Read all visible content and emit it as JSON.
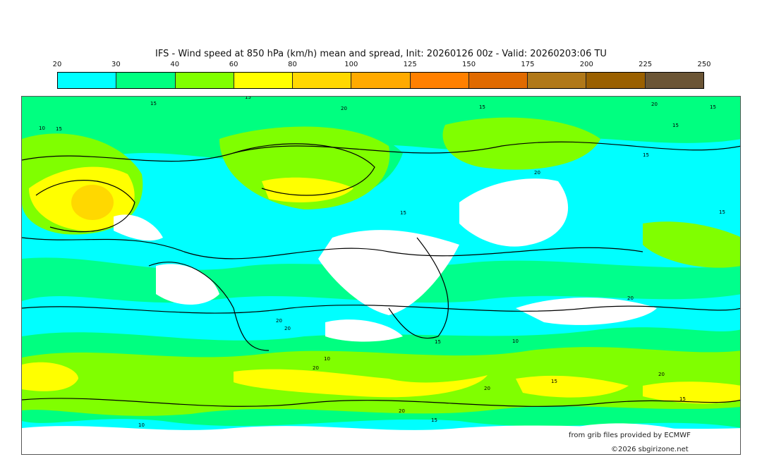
{
  "title": "IFS - Wind speed at 850 hPa (km/h) mean and spread, Init: 20260126 00z - Valid: 20260203:06 TU",
  "colorbar": {
    "ticks": [
      "20",
      "30",
      "40",
      "60",
      "80",
      "100",
      "125",
      "150",
      "175",
      "200",
      "225",
      "250"
    ],
    "colors": [
      "#00ffff",
      "#00ff80",
      "#80ff00",
      "#ffff00",
      "#ffd800",
      "#ffaa00",
      "#ff8000",
      "#e06a00",
      "#b07818",
      "#9a6000",
      "#6b5535"
    ]
  },
  "map": {
    "contour_labels": [
      "15",
      "15",
      "20",
      "15",
      "20",
      "15",
      "10",
      "15",
      "15",
      "20",
      "15",
      "15",
      "15",
      "20",
      "20",
      "20",
      "20",
      "10",
      "15",
      "10",
      "20",
      "15",
      "20",
      "15",
      "10",
      "20",
      "15"
    ]
  },
  "credits": {
    "source": "from grib files provided by ECMWF",
    "copyright": "©2026 sbgirizone.net"
  }
}
